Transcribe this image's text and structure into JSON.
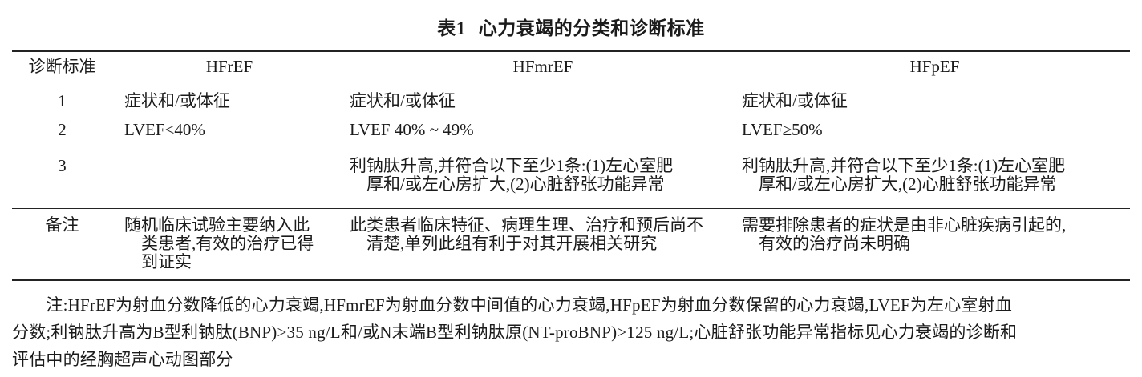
{
  "title": {
    "label": "表1",
    "caption": "心力衰竭的分类和诊断标准"
  },
  "table": {
    "headers": [
      "诊断标准",
      "HFrEF",
      "HFmrEF",
      "HFpEF"
    ],
    "rows": [
      {
        "criteria": "1",
        "hfref": "症状和/或体征",
        "hfmref": "症状和/或体征",
        "hfpef": "症状和/或体征"
      },
      {
        "criteria": "2",
        "hfref": "LVEF<40%",
        "hfmref": "LVEF 40% ~ 49%",
        "hfpef": "LVEF≥50%"
      },
      {
        "criteria": "3",
        "hfref": "",
        "hfmref": "利钠肽升高,并符合以下至少1条:(1)左心室肥\n　厚和/或左心房扩大,(2)心脏舒张功能异常",
        "hfpef": "利钠肽升高,并符合以下至少1条:(1)左心室肥\n　厚和/或左心房扩大,(2)心脏舒张功能异常"
      }
    ],
    "remark": {
      "criteria": "备注",
      "hfref": "随机临床试验主要纳入此\n　类患者,有效的治疗已得\n　到证实",
      "hfmref": "此类患者临床特征、病理生理、治疗和预后尚不\n　清楚,单列此组有利于对其开展相关研究",
      "hfpef": "需要排除患者的症状是由非心脏疾病引起的,\n　有效的治疗尚未明确"
    }
  },
  "footnote": "　　注:HFrEF为射血分数降低的心力衰竭,HFmrEF为射血分数中间值的心力衰竭,HFpEF为射血分数保留的心力衰竭,LVEF为左心室射血\n分数;利钠肽升高为B型利钠肽(BNP)>35 ng/L和/或N末端B型利钠肽原(NT-proBNP)>125 ng/L;心脏舒张功能异常指标见心力衰竭的诊断和\n评估中的经胸超声心动图部分"
}
